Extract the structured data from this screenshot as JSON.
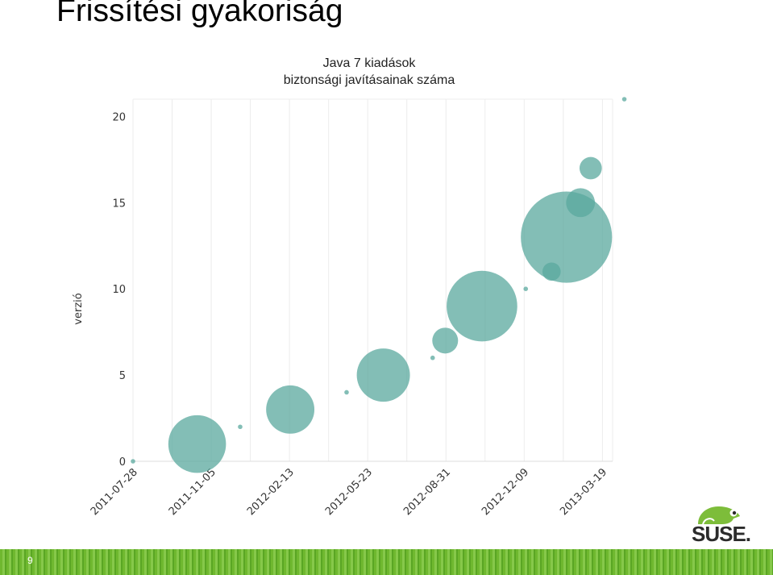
{
  "slide": {
    "title": "Frissítési gyakoriság",
    "page_number": "9"
  },
  "logo": {
    "text": "SUSE.",
    "accent": "#7dbd3a"
  },
  "chart_data": {
    "type": "bubble",
    "title": "Java 7 kiadások",
    "subtitle": "biztonsági javításainak száma",
    "ylabel": "verzió",
    "xlabel": "",
    "ylim": [
      0,
      21
    ],
    "yticks": [
      0,
      5,
      10,
      15,
      20
    ],
    "xticks": [
      "2011-07-28",
      "2011-11-05",
      "2012-02-13",
      "2012-05-23",
      "2012-08-31",
      "2012-12-09",
      "2013-03-19"
    ],
    "xlim": [
      "2011-07-28",
      "2013-04-01"
    ],
    "bubble_color": "#5aa89e",
    "grid": "vertical",
    "points": [
      {
        "date": "2011-07-28",
        "version": 0,
        "size": 0
      },
      {
        "date": "2011-10-18",
        "version": 1,
        "size": 20
      },
      {
        "date": "2011-12-12",
        "version": 2,
        "size": 0
      },
      {
        "date": "2012-02-14",
        "version": 3,
        "size": 14
      },
      {
        "date": "2012-04-26",
        "version": 4,
        "size": 0
      },
      {
        "date": "2012-06-12",
        "version": 5,
        "size": 17
      },
      {
        "date": "2012-08-14",
        "version": 6,
        "size": 0
      },
      {
        "date": "2012-08-30",
        "version": 7,
        "size": 4
      },
      {
        "date": "2012-10-16",
        "version": 9,
        "size": 30
      },
      {
        "date": "2012-12-11",
        "version": 10,
        "size": 0
      },
      {
        "date": "2013-01-13",
        "version": 11,
        "size": 2
      },
      {
        "date": "2013-02-01",
        "version": 13,
        "size": 50
      },
      {
        "date": "2013-02-19",
        "version": 15,
        "size": 5
      },
      {
        "date": "2013-03-04",
        "version": 17,
        "size": 3
      },
      {
        "date": "2013-04-16",
        "version": 21,
        "size": 0
      }
    ]
  }
}
